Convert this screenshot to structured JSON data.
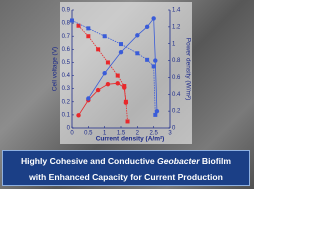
{
  "chart_data": {
    "type": "line",
    "xlabel": "Current density (A/m²)",
    "ylabel": "Cell voltage (V)",
    "y2label": "Power density (W/m²)",
    "xlim": [
      0,
      3
    ],
    "xticks": [
      0,
      0.5,
      1,
      1.5,
      2,
      2.5,
      3
    ],
    "ylim": [
      0,
      0.9
    ],
    "yticks": [
      0,
      0.1,
      0.2,
      0.3,
      0.4,
      0.5,
      0.6,
      0.7,
      0.8,
      0.9
    ],
    "y2lim": [
      0,
      1.4
    ],
    "y2ticks": [
      0,
      0.2,
      0.4,
      0.6,
      0.8,
      1,
      1.2,
      1.4
    ],
    "series": [
      {
        "color": "#e8282b",
        "x": [
          0.2,
          0.5,
          0.8,
          1.1,
          1.4,
          1.6,
          1.65,
          1.7
        ],
        "values": [
          0.78,
          0.7,
          0.6,
          0.5,
          0.4,
          0.32,
          0.2,
          0.05
        ]
      },
      {
        "color": "#e8282b",
        "axis": "y2",
        "x": [
          0.2,
          0.5,
          0.8,
          1.1,
          1.4,
          1.6,
          1.65
        ],
        "values": [
          0.15,
          0.33,
          0.45,
          0.52,
          0.53,
          0.48,
          0.3
        ]
      },
      {
        "color": "#3a5cd8",
        "x": [
          0,
          0.5,
          1,
          1.5,
          2,
          2.3,
          2.5,
          2.55
        ],
        "values": [
          0.82,
          0.76,
          0.7,
          0.64,
          0.57,
          0.52,
          0.47,
          0.1
        ]
      },
      {
        "color": "#3a5cd8",
        "axis": "y2",
        "x": [
          0.5,
          1,
          1.5,
          2,
          2.3,
          2.5,
          2.55,
          2.6
        ],
        "values": [
          0.35,
          0.65,
          0.9,
          1.1,
          1.2,
          1.3,
          0.8,
          0.2
        ]
      }
    ]
  },
  "banner": {
    "line1": [
      "Highly Cohesive and Conductive ",
      "Geobacter",
      " Biofilm"
    ],
    "line2": "with Enhanced Capacity for Current Production"
  }
}
